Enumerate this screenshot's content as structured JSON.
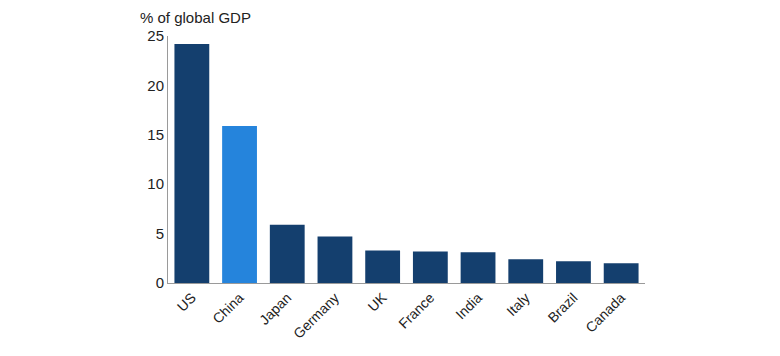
{
  "chart_data": {
    "type": "bar",
    "y_label": "% of global GDP",
    "categories": [
      "US",
      "China",
      "Japan",
      "Germany",
      "UK",
      "France",
      "India",
      "Italy",
      "Brazil",
      "Canada"
    ],
    "values": [
      24.2,
      15.9,
      5.9,
      4.7,
      3.3,
      3.2,
      3.1,
      2.4,
      2.2,
      2.0
    ],
    "colors": [
      "#143f6e",
      "#2584dc",
      "#143f6e",
      "#143f6e",
      "#143f6e",
      "#143f6e",
      "#143f6e",
      "#143f6e",
      "#143f6e",
      "#143f6e"
    ],
    "ylim": [
      0,
      25
    ],
    "yticks": [
      0,
      5,
      10,
      15,
      20,
      25
    ],
    "grid": false
  }
}
